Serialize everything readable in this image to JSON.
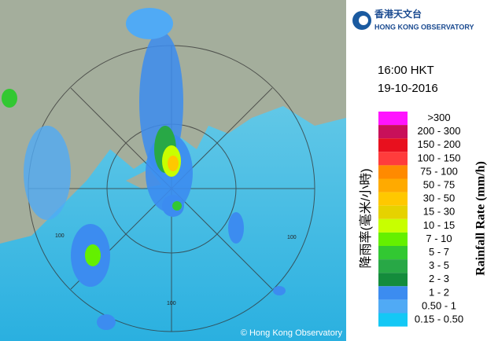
{
  "header": {
    "logo_chinese": "香港天文台",
    "logo_english": "HONG KONG OBSERVATORY"
  },
  "time": "16:00 HKT",
  "date": "19-10-2016",
  "legend": {
    "title_chinese": "降雨率(毫米/小時)",
    "title_english": "Rainfall Rate (mm/h)",
    "items": [
      {
        "label": ">300",
        "color": "#ff14ff"
      },
      {
        "label": "200 - 300",
        "color": "#c8105a"
      },
      {
        "label": "150 - 200",
        "color": "#e8101e"
      },
      {
        "label": "100 - 150",
        "color": "#ff3c3c"
      },
      {
        "label": "75 - 100",
        "color": "#ff8a00"
      },
      {
        "label": "50 - 75",
        "color": "#ffaa00"
      },
      {
        "label": "30 - 50",
        "color": "#ffc800"
      },
      {
        "label": "15 - 30",
        "color": "#e6d200"
      },
      {
        "label": "10 - 15",
        "color": "#c8ff00"
      },
      {
        "label": "7 - 10",
        "color": "#64f000"
      },
      {
        "label": "5 - 7",
        "color": "#32c832"
      },
      {
        "label": "3 - 5",
        "color": "#28a846"
      },
      {
        "label": "2 - 3",
        "color": "#148c3c"
      },
      {
        "label": "1 - 2",
        "color": "#3c8cf0"
      },
      {
        "label": "0.50 - 1",
        "color": "#50aaf5"
      },
      {
        "label": "0.15 - 0.50",
        "color": "#14c8f5"
      }
    ]
  },
  "map": {
    "range_labels": [
      "100",
      "100",
      "100"
    ],
    "copyright": "© Hong Kong Observatory"
  }
}
